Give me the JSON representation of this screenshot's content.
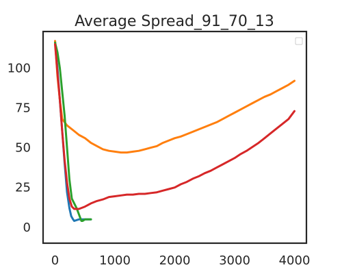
{
  "chart_data": {
    "type": "line",
    "title": "Average Spread_91_70_13",
    "xlabel": "",
    "ylabel": "",
    "xlim": [
      -200,
      4200
    ],
    "ylim": [
      -10,
      123
    ],
    "x_ticks": [
      0,
      1000,
      2000,
      3000,
      4000
    ],
    "y_ticks": [
      0,
      25,
      50,
      75,
      100
    ],
    "grid": false,
    "legend": {
      "placement": "top-right",
      "entries": []
    },
    "series": [
      {
        "color": "#1f77b4",
        "points": [
          [
            0,
            117
          ],
          [
            40,
            100
          ],
          [
            80,
            80
          ],
          [
            120,
            60
          ],
          [
            160,
            40
          ],
          [
            200,
            22
          ],
          [
            240,
            12
          ],
          [
            270,
            7
          ],
          [
            300,
            5
          ],
          [
            320,
            4
          ],
          [
            400,
            5
          ],
          [
            500,
            5
          ],
          [
            600,
            5
          ]
        ]
      },
      {
        "color": "#ff7f0e",
        "points": [
          [
            0,
            117
          ],
          [
            40,
            95
          ],
          [
            80,
            80
          ],
          [
            120,
            68
          ],
          [
            200,
            64
          ],
          [
            300,
            61
          ],
          [
            400,
            58
          ],
          [
            500,
            56
          ],
          [
            600,
            53
          ],
          [
            700,
            51
          ],
          [
            800,
            49
          ],
          [
            900,
            48
          ],
          [
            1000,
            47.5
          ],
          [
            1100,
            47
          ],
          [
            1200,
            47
          ],
          [
            1300,
            47.5
          ],
          [
            1400,
            48
          ],
          [
            1500,
            49
          ],
          [
            1600,
            50
          ],
          [
            1700,
            51
          ],
          [
            1800,
            53
          ],
          [
            1900,
            54.5
          ],
          [
            2000,
            56
          ],
          [
            2100,
            57
          ],
          [
            2200,
            58.5
          ],
          [
            2300,
            60
          ],
          [
            2400,
            61.5
          ],
          [
            2500,
            63
          ],
          [
            2600,
            64.5
          ],
          [
            2700,
            66
          ],
          [
            2800,
            68
          ],
          [
            2900,
            70
          ],
          [
            3000,
            72
          ],
          [
            3100,
            74
          ],
          [
            3200,
            76
          ],
          [
            3300,
            78
          ],
          [
            3400,
            80
          ],
          [
            3500,
            82
          ],
          [
            3600,
            83.5
          ],
          [
            3700,
            85.5
          ],
          [
            3800,
            87.5
          ],
          [
            3900,
            89.5
          ],
          [
            4000,
            92
          ]
        ]
      },
      {
        "color": "#2ca02c",
        "points": [
          [
            0,
            116
          ],
          [
            40,
            110
          ],
          [
            80,
            100
          ],
          [
            120,
            85
          ],
          [
            160,
            70
          ],
          [
            200,
            50
          ],
          [
            240,
            30
          ],
          [
            280,
            18
          ],
          [
            320,
            15
          ],
          [
            360,
            12
          ],
          [
            400,
            8
          ],
          [
            440,
            4
          ],
          [
            460,
            4
          ],
          [
            500,
            5
          ],
          [
            550,
            5
          ],
          [
            600,
            5
          ]
        ]
      },
      {
        "color": "#d62728",
        "points": [
          [
            0,
            115
          ],
          [
            40,
            97
          ],
          [
            80,
            80
          ],
          [
            120,
            60
          ],
          [
            160,
            42
          ],
          [
            200,
            28
          ],
          [
            240,
            18
          ],
          [
            280,
            13
          ],
          [
            320,
            11.5
          ],
          [
            400,
            11.5
          ],
          [
            500,
            13
          ],
          [
            600,
            15
          ],
          [
            700,
            16.5
          ],
          [
            800,
            17.5
          ],
          [
            900,
            19
          ],
          [
            1000,
            19.5
          ],
          [
            1100,
            20
          ],
          [
            1200,
            20.5
          ],
          [
            1300,
            20.5
          ],
          [
            1400,
            21
          ],
          [
            1500,
            21
          ],
          [
            1600,
            21.5
          ],
          [
            1700,
            22
          ],
          [
            1800,
            23
          ],
          [
            1900,
            24
          ],
          [
            2000,
            25
          ],
          [
            2100,
            27
          ],
          [
            2200,
            28.5
          ],
          [
            2300,
            30.5
          ],
          [
            2400,
            32
          ],
          [
            2500,
            34
          ],
          [
            2600,
            35.5
          ],
          [
            2700,
            37.5
          ],
          [
            2800,
            39.5
          ],
          [
            2900,
            41.5
          ],
          [
            3000,
            43.5
          ],
          [
            3100,
            46
          ],
          [
            3200,
            48
          ],
          [
            3300,
            50.5
          ],
          [
            3400,
            53
          ],
          [
            3500,
            56
          ],
          [
            3600,
            59
          ],
          [
            3700,
            62
          ],
          [
            3800,
            65
          ],
          [
            3900,
            68
          ],
          [
            4000,
            73
          ]
        ]
      }
    ]
  }
}
